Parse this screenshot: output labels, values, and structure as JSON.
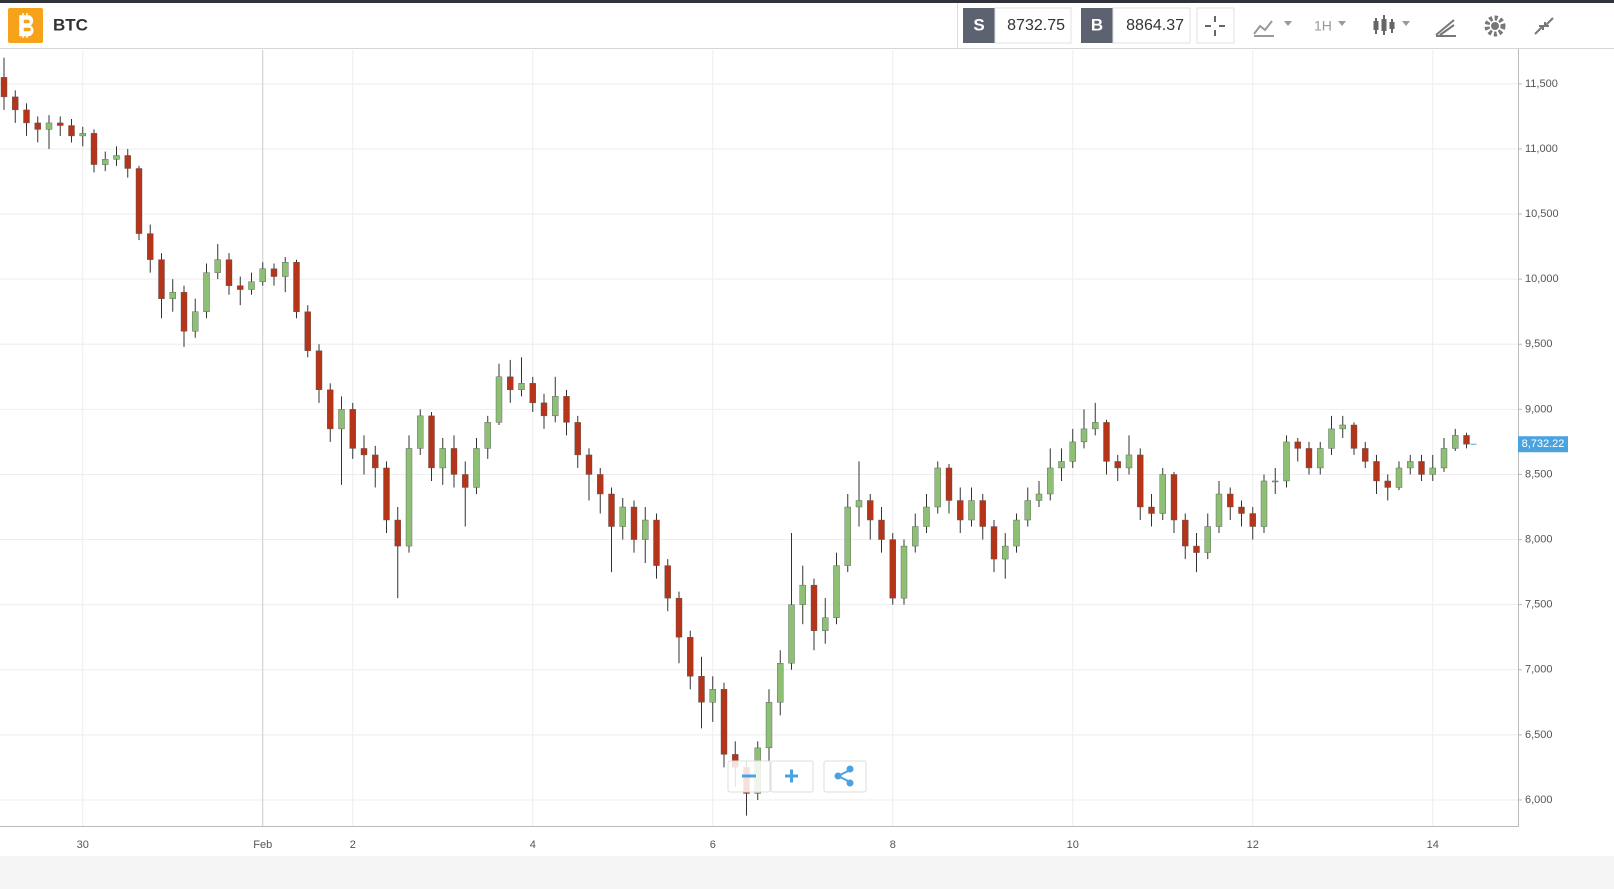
{
  "toolbar": {
    "symbol": "BTC",
    "sell_label": "S",
    "sell_price": "8732.75",
    "buy_label": "B",
    "buy_price": "8864.37",
    "interval": "1H"
  },
  "chart_data": {
    "type": "candlestick",
    "categories": [
      null,
      null,
      null,
      null,
      null,
      null,
      null,
      "30",
      null,
      null,
      null,
      null,
      null,
      null,
      null,
      null,
      null,
      null,
      null,
      null,
      null,
      null,
      null,
      "Feb",
      null,
      null,
      null,
      null,
      null,
      null,
      null,
      "2",
      null,
      null,
      null,
      null,
      null,
      null,
      null,
      null,
      null,
      null,
      null,
      null,
      null,
      null,
      null,
      "4",
      null,
      null,
      null,
      null,
      null,
      null,
      null,
      null,
      null,
      null,
      null,
      null,
      null,
      null,
      null,
      "6",
      null,
      null,
      null,
      null,
      null,
      null,
      null,
      null,
      null,
      null,
      null,
      null,
      null,
      null,
      null,
      "8",
      null,
      null,
      null,
      null,
      null,
      null,
      null,
      null,
      null,
      null,
      null,
      null,
      null,
      null,
      null,
      "10",
      null,
      null,
      null,
      null,
      null,
      null,
      null,
      null,
      null,
      null,
      null,
      null,
      null,
      null,
      null,
      "12",
      null,
      null,
      null,
      null,
      null,
      null,
      null,
      null,
      null,
      null,
      null,
      null,
      null,
      null,
      null,
      "14",
      null,
      null,
      null
    ],
    "open": [
      11550,
      11400,
      11300,
      11200,
      11150,
      11200,
      11180,
      11100,
      11120,
      10880,
      10920,
      10950,
      10850,
      10350,
      10150,
      9850,
      9900,
      9600,
      9750,
      10050,
      10150,
      9950,
      9920,
      9980,
      10080,
      10020,
      10130,
      9750,
      9450,
      9150,
      8850,
      9000,
      8700,
      8650,
      8550,
      8150,
      7950,
      8700,
      8950,
      8550,
      8700,
      8500,
      8400,
      8700,
      8900,
      9250,
      9150,
      9200,
      9050,
      8950,
      9100,
      8900,
      8650,
      8500,
      8350,
      8100,
      8250,
      8000,
      8150,
      7800,
      7550,
      7250,
      6950,
      6750,
      6850,
      6350,
      6250,
      6050,
      6400,
      6750,
      7050,
      7500,
      7650,
      7300,
      7400,
      7800,
      8250,
      8300,
      8150,
      8000,
      7550,
      7950,
      8100,
      8250,
      8550,
      8300,
      8150,
      8300,
      8100,
      7850,
      7950,
      8150,
      8300,
      8350,
      8550,
      8600,
      8750,
      8850,
      8900,
      8600,
      8550,
      8650,
      8250,
      8200,
      8500,
      8150,
      7950,
      7900,
      8100,
      8350,
      8250,
      8200,
      8100,
      8450,
      8450,
      8750,
      8700,
      8550,
      8700,
      8850,
      8880,
      8700,
      8600,
      8450,
      8400,
      8550,
      8600,
      8500,
      8550,
      8700,
      8800
    ],
    "high": [
      11700,
      11450,
      11350,
      11250,
      11260,
      11250,
      11230,
      11170,
      11150,
      10980,
      11020,
      11000,
      10870,
      10420,
      10200,
      10000,
      9950,
      9850,
      10120,
      10270,
      10200,
      10020,
      10050,
      10130,
      10120,
      10170,
      10150,
      9800,
      9500,
      9200,
      9100,
      9050,
      8800,
      8720,
      8600,
      8250,
      8800,
      9000,
      8980,
      8780,
      8800,
      8600,
      8780,
      8950,
      9350,
      9380,
      9400,
      9250,
      9120,
      9250,
      9150,
      8950,
      8700,
      8550,
      8400,
      8320,
      8300,
      8250,
      8200,
      7850,
      7600,
      7300,
      7100,
      6950,
      6900,
      6450,
      6300,
      6450,
      6850,
      7150,
      8050,
      7800,
      7700,
      7550,
      7900,
      8350,
      8600,
      8350,
      8250,
      8050,
      8000,
      8200,
      8350,
      8600,
      8580,
      8400,
      8400,
      8350,
      8150,
      8050,
      8200,
      8400,
      8450,
      8700,
      8700,
      8850,
      9000,
      9050,
      8920,
      8650,
      8800,
      8700,
      8350,
      8550,
      8520,
      8200,
      8050,
      8200,
      8450,
      8400,
      8300,
      8250,
      8500,
      8550,
      8800,
      8780,
      8750,
      8750,
      8950,
      8950,
      8900,
      8750,
      8650,
      8500,
      8600,
      8650,
      8650,
      8650,
      8780,
      8850,
      8820
    ],
    "low": [
      11300,
      11200,
      11100,
      11050,
      11000,
      11100,
      11050,
      11020,
      10820,
      10830,
      10870,
      10780,
      10300,
      10050,
      9700,
      9750,
      9480,
      9550,
      9700,
      10000,
      9880,
      9800,
      9880,
      9950,
      9950,
      9900,
      9700,
      9400,
      9050,
      8750,
      8420,
      8620,
      8500,
      8400,
      8050,
      7550,
      7900,
      8650,
      8450,
      8420,
      8400,
      8100,
      8350,
      8620,
      8880,
      9050,
      9100,
      8980,
      8850,
      8900,
      8800,
      8550,
      8300,
      8200,
      7750,
      8000,
      7900,
      7820,
      7700,
      7450,
      7050,
      6850,
      6550,
      6600,
      6250,
      6100,
      5880,
      6000,
      6300,
      6650,
      7000,
      7350,
      7150,
      7200,
      7350,
      7750,
      8100,
      8000,
      7900,
      7500,
      7500,
      7900,
      8050,
      8200,
      8200,
      8050,
      8100,
      8000,
      7750,
      7700,
      7900,
      8100,
      8250,
      8300,
      8450,
      8550,
      8700,
      8800,
      8500,
      8450,
      8500,
      8150,
      8100,
      8150,
      8050,
      7850,
      7750,
      7850,
      8050,
      8150,
      8100,
      8000,
      8050,
      8350,
      8400,
      8600,
      8500,
      8500,
      8650,
      8780,
      8650,
      8550,
      8350,
      8300,
      8380,
      8500,
      8450,
      8450,
      8520,
      8680,
      8700
    ],
    "close": [
      11400,
      11300,
      11200,
      11150,
      11200,
      11180,
      11100,
      11120,
      10880,
      10920,
      10950,
      10850,
      10350,
      10150,
      9850,
      9900,
      9600,
      9750,
      10050,
      10150,
      9950,
      9920,
      9980,
      10080,
      10020,
      10130,
      9750,
      9450,
      9150,
      8850,
      9000,
      8700,
      8650,
      8550,
      8150,
      7950,
      8700,
      8950,
      8550,
      8700,
      8500,
      8400,
      8700,
      8900,
      9250,
      9150,
      9200,
      9050,
      8950,
      9100,
      8900,
      8650,
      8500,
      8350,
      8100,
      8250,
      8000,
      8150,
      7800,
      7550,
      7250,
      6950,
      6750,
      6850,
      6350,
      6250,
      6050,
      6400,
      6750,
      7050,
      7500,
      7650,
      7300,
      7400,
      7800,
      8250,
      8300,
      8150,
      8000,
      7550,
      7950,
      8100,
      8250,
      8550,
      8300,
      8150,
      8300,
      8100,
      7850,
      7950,
      8150,
      8300,
      8350,
      8550,
      8600,
      8750,
      8850,
      8900,
      8600,
      8550,
      8650,
      8250,
      8200,
      8500,
      8150,
      7950,
      7900,
      8100,
      8350,
      8250,
      8200,
      8100,
      8450,
      8450,
      8750,
      8700,
      8550,
      8700,
      8850,
      8880,
      8700,
      8600,
      8450,
      8400,
      8550,
      8600,
      8500,
      8550,
      8700,
      8800,
      8732.22
    ],
    "up_color": "#8dbf74",
    "down_color": "#b5341a",
    "wick_color": "#333333",
    "ylim": [
      5800,
      11760
    ],
    "yticks": [
      {
        "value": 6000,
        "label": "6,000"
      },
      {
        "value": 6500,
        "label": "6,500"
      },
      {
        "value": 7000,
        "label": "7,000"
      },
      {
        "value": 7500,
        "label": "7,500"
      },
      {
        "value": 8000,
        "label": "8,000"
      },
      {
        "value": 8500,
        "label": "8,500"
      },
      {
        "value": 9000,
        "label": "9,000"
      },
      {
        "value": 9500,
        "label": "9,500"
      },
      {
        "value": 10000,
        "label": "10,000"
      },
      {
        "value": 10500,
        "label": "10,500"
      },
      {
        "value": 11000,
        "label": "11,000"
      },
      {
        "value": 11500,
        "label": "11,500"
      }
    ],
    "grid": true,
    "last_price": {
      "value": 8732.22,
      "label": "8,732.22"
    },
    "last_price_color": "#4aa3df"
  }
}
